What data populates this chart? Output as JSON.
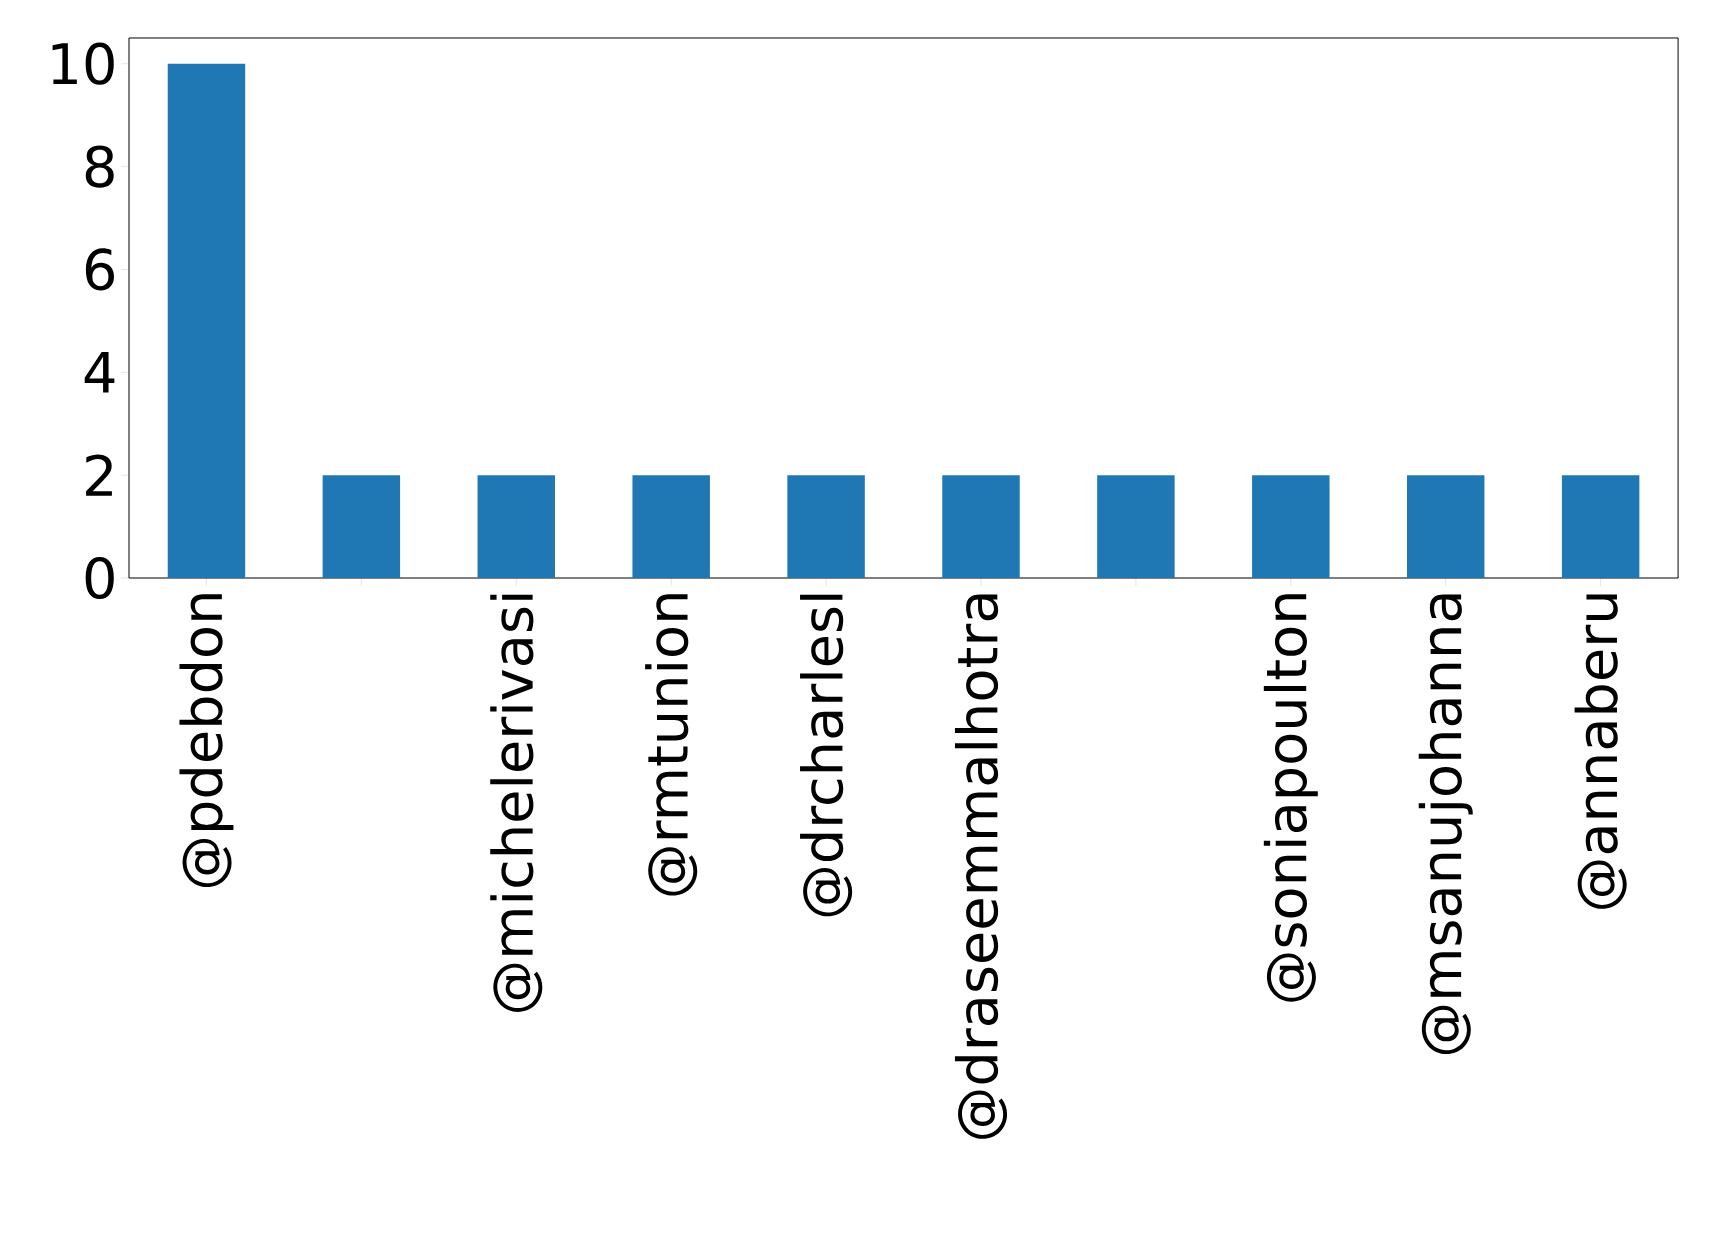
{
  "chart_data": {
    "type": "bar",
    "categories": [
      "@pdebdon",
      null,
      "@michelerivasi",
      "@rmtunion",
      "@drcharlesl",
      "@draseemmalhotra",
      null,
      "@soniapoulton",
      "@msanujohanna",
      "@annaberu"
    ],
    "values": [
      10,
      2,
      2,
      2,
      2,
      2,
      2,
      2,
      2,
      2
    ],
    "color": "#1f77b4",
    "ylim": [
      0,
      10.5
    ],
    "yticks": [
      0,
      2,
      4,
      6,
      8,
      10
    ]
  }
}
